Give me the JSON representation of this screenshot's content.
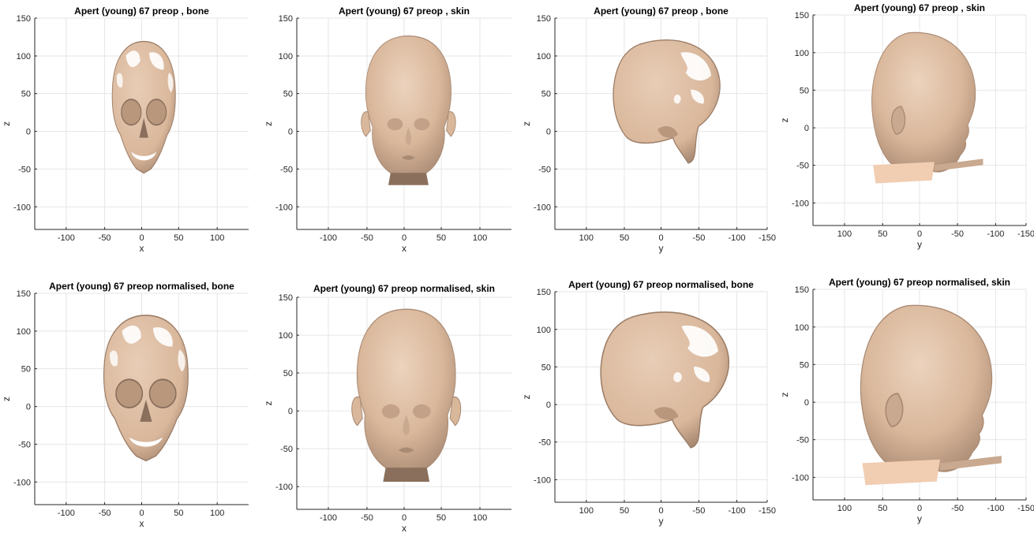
{
  "figure": {
    "colors": {
      "surface": "#d9b79b",
      "surface_dark": "#a98a73",
      "shadow": "#8a6f5c",
      "grid": "#e6e6e6",
      "axis": "#262626"
    },
    "panels": [
      {
        "title": "Apert (young) 67 preop , bone",
        "xlabel": "x",
        "ylabel": "z",
        "h_ticks": [
          "-100",
          "-50",
          "0",
          "50",
          "100"
        ],
        "v_ticks": [
          "150",
          "100",
          "50",
          "0",
          "-50",
          "-100"
        ],
        "render": "skull-front"
      },
      {
        "title": "Apert (young) 67 preop , skin",
        "xlabel": "x",
        "ylabel": "z",
        "h_ticks": [
          "-100",
          "-50",
          "0",
          "50",
          "100"
        ],
        "v_ticks": [
          "150",
          "100",
          "50",
          "0",
          "-50",
          "-100"
        ],
        "render": "face-front"
      },
      {
        "title": "Apert (young) 67 preop , bone",
        "xlabel": "y",
        "ylabel": "z",
        "h_ticks": [
          "100",
          "50",
          "0",
          "-50",
          "-100",
          "-150"
        ],
        "v_ticks": [
          "150",
          "100",
          "50",
          "0",
          "-50",
          "-100"
        ],
        "render": "skull-side"
      },
      {
        "title": "Apert (young) 67 preop , skin",
        "xlabel": "y",
        "ylabel": "z",
        "h_ticks": [
          "100",
          "50",
          "0",
          "-50",
          "-100",
          "-150"
        ],
        "v_ticks": [
          "150",
          "100",
          "50",
          "0",
          "-50",
          "-100"
        ],
        "render": "head-side"
      },
      {
        "title": "Apert (young) 67 preop normalised, bone",
        "xlabel": "x",
        "ylabel": "z",
        "h_ticks": [
          "-100",
          "-50",
          "0",
          "50",
          "100"
        ],
        "v_ticks": [
          "150",
          "100",
          "50",
          "0",
          "-50",
          "-100"
        ],
        "render": "skull-front"
      },
      {
        "title": "Apert (young) 67 preop normalised, skin",
        "xlabel": "x",
        "ylabel": "z",
        "h_ticks": [
          "-100",
          "-50",
          "0",
          "50",
          "100"
        ],
        "v_ticks": [
          "150",
          "100",
          "50",
          "0",
          "-50",
          "-100"
        ],
        "render": "face-front"
      },
      {
        "title": "Apert (young) 67 preop normalised, bone",
        "xlabel": "y",
        "ylabel": "z",
        "h_ticks": [
          "100",
          "50",
          "0",
          "-50",
          "-100",
          "-150"
        ],
        "v_ticks": [
          "150",
          "100",
          "50",
          "0",
          "-50",
          "-100"
        ],
        "render": "skull-side"
      },
      {
        "title": "Apert (young) 67 preop normalised, skin",
        "xlabel": "y",
        "ylabel": "z",
        "h_ticks": [
          "100",
          "50",
          "0",
          "-50",
          "-100",
          "-150"
        ],
        "v_ticks": [
          "150",
          "100",
          "50",
          "0",
          "-50",
          "-100"
        ],
        "render": "head-side"
      }
    ]
  }
}
